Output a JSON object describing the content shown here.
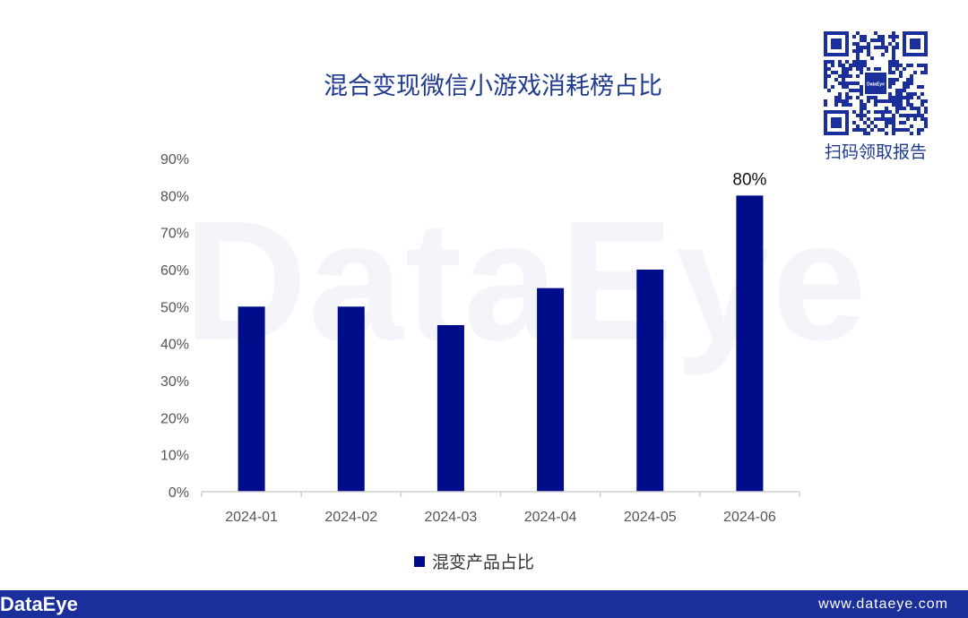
{
  "watermark": "DataEye",
  "title": "混合变现微信小游戏消耗榜占比",
  "qr": {
    "center_logo": "DataEye",
    "caption": "扫码领取报告"
  },
  "footer": {
    "logo": "DataEye",
    "url": "www.dataeye.com"
  },
  "colors": {
    "bar": "#000c8a",
    "title": "#1f3a8f",
    "footer_bg": "#1a2f9c"
  },
  "chart_data": {
    "type": "bar",
    "title": "混合变现微信小游戏消耗榜占比",
    "categories": [
      "2024-01",
      "2024-02",
      "2024-03",
      "2024-04",
      "2024-05",
      "2024-06"
    ],
    "series": [
      {
        "name": "混变产品占比",
        "values": [
          50,
          50,
          45,
          55,
          60,
          80
        ]
      }
    ],
    "y_ticks": [
      "0%",
      "10%",
      "20%",
      "30%",
      "40%",
      "50%",
      "60%",
      "70%",
      "80%",
      "90%"
    ],
    "ylim": [
      0,
      90
    ],
    "data_labels": [
      {
        "category": "2024-06",
        "label": "80%"
      }
    ],
    "grid": false,
    "legend_position": "bottom"
  }
}
